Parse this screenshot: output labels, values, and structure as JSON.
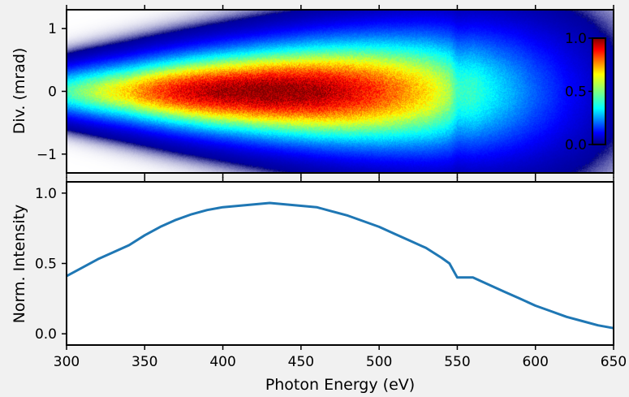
{
  "chart_data": [
    {
      "type": "heatmap",
      "title": "",
      "xlabel": "",
      "ylabel": "Div. (mrad)",
      "xlim": [
        300,
        650
      ],
      "ylim": [
        -1.3,
        1.3
      ],
      "yticks": [
        -1,
        0,
        1
      ],
      "ytick_labels": [
        "−1",
        "0",
        "1"
      ],
      "colormap": "jet",
      "colorbar": {
        "range": [
          0.0,
          1.0
        ],
        "ticks": [
          0.0,
          0.5,
          1.0
        ],
        "tick_labels": [
          "0.0",
          "0.5",
          "1.0"
        ],
        "placement": "right-inside"
      },
      "colormap_stops": [
        "#00007f",
        "#0000ff",
        "#007fff",
        "#00ffff",
        "#7fff7f",
        "#ffff00",
        "#ff7f00",
        "#ff0000",
        "#7f0000"
      ]
    },
    {
      "type": "line",
      "title": "",
      "xlabel": "Photon Energy (eV)",
      "ylabel": "Norm. Intensity",
      "xlim": [
        300,
        650
      ],
      "ylim": [
        -0.08,
        1.08
      ],
      "xticks": [
        300,
        350,
        400,
        450,
        500,
        550,
        600,
        650
      ],
      "xtick_labels": [
        "300",
        "350",
        "400",
        "450",
        "500",
        "550",
        "600",
        "650"
      ],
      "yticks": [
        0.0,
        0.5,
        1.0
      ],
      "ytick_labels": [
        "0.0",
        "0.5",
        "1.0"
      ],
      "series": [
        {
          "color": "#1f77b4",
          "x": [
            300,
            310,
            320,
            330,
            340,
            350,
            360,
            370,
            380,
            390,
            400,
            410,
            420,
            430,
            440,
            450,
            460,
            470,
            480,
            490,
            500,
            510,
            520,
            530,
            540,
            545,
            550,
            555,
            560,
            570,
            580,
            590,
            600,
            610,
            620,
            630,
            640,
            650
          ],
          "y": [
            0.41,
            0.47,
            0.53,
            0.58,
            0.63,
            0.7,
            0.76,
            0.81,
            0.85,
            0.88,
            0.9,
            0.91,
            0.92,
            0.93,
            0.92,
            0.91,
            0.9,
            0.87,
            0.84,
            0.8,
            0.76,
            0.71,
            0.66,
            0.61,
            0.54,
            0.5,
            0.4,
            0.4,
            0.4,
            0.35,
            0.3,
            0.25,
            0.2,
            0.16,
            0.12,
            0.09,
            0.06,
            0.04
          ]
        }
      ]
    }
  ]
}
